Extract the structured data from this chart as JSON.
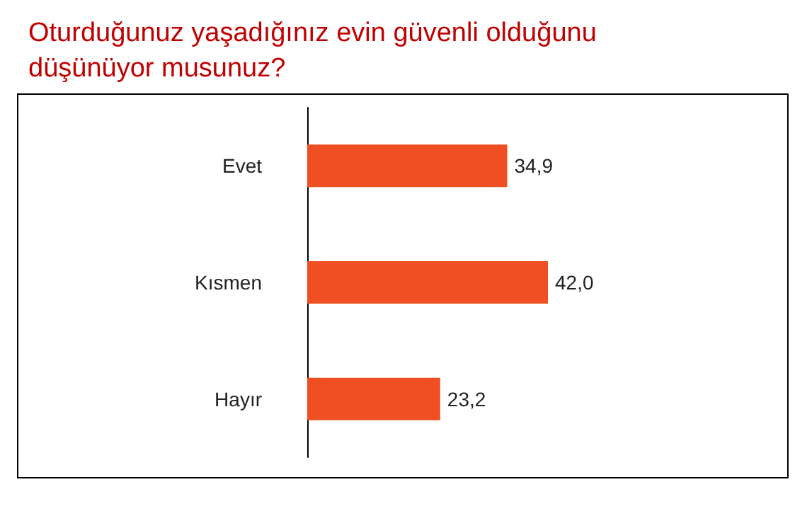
{
  "chart_data": {
    "type": "bar",
    "orientation": "horizontal",
    "title": "Oturduğunuz yaşadığınız evin güvenli olduğunu düşünüyor musunuz?",
    "categories": [
      "Evet",
      "Kısmen",
      "Hayır"
    ],
    "values": [
      34.9,
      42.0,
      23.2
    ],
    "value_labels": [
      "34,9",
      "42,0",
      "23,2"
    ],
    "color": "#f04e23"
  }
}
